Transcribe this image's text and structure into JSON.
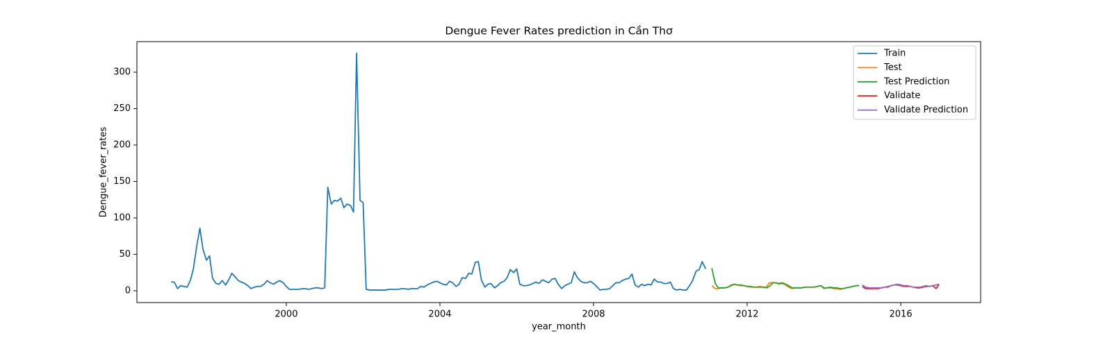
{
  "chart_data": {
    "type": "line",
    "title": "Dengue Fever Rates prediction in Cần Thơ",
    "xlabel": "year_month",
    "ylabel": "Dengue_fever_rates",
    "xlim": [
      1996.11,
      2018.08
    ],
    "ylim": [
      -16.2,
      341.9
    ],
    "xticks": [
      2000,
      2004,
      2008,
      2012,
      2016
    ],
    "yticks": [
      0,
      50,
      100,
      150,
      200,
      250,
      300
    ],
    "legend": "upper right",
    "grid": false,
    "series": [
      {
        "name": "Train",
        "color": "#1f77b4",
        "x": [
          1997,
          1997.08,
          1997.17,
          1997.25,
          1997.33,
          1997.42,
          1997.5,
          1997.58,
          1997.67,
          1997.75,
          1997.83,
          1997.92,
          1998,
          1998.08,
          1998.17,
          1998.25,
          1998.33,
          1998.42,
          1998.5,
          1998.58,
          1998.67,
          1998.75,
          1998.83,
          1998.92,
          1999,
          1999.08,
          1999.17,
          1999.25,
          1999.33,
          1999.42,
          1999.5,
          1999.58,
          1999.67,
          1999.75,
          1999.83,
          1999.92,
          2000,
          2000.08,
          2000.17,
          2000.25,
          2000.33,
          2000.42,
          2000.5,
          2000.58,
          2000.67,
          2000.75,
          2000.83,
          2000.92,
          2001,
          2001.08,
          2001.17,
          2001.25,
          2001.33,
          2001.42,
          2001.5,
          2001.58,
          2001.67,
          2001.75,
          2001.83,
          2001.92,
          2002,
          2002.08,
          2002.17,
          2002.25,
          2002.33,
          2002.42,
          2002.5,
          2002.58,
          2002.67,
          2002.75,
          2002.83,
          2002.92,
          2003,
          2003.08,
          2003.17,
          2003.25,
          2003.33,
          2003.42,
          2003.5,
          2003.58,
          2003.67,
          2003.75,
          2003.83,
          2003.92,
          2004,
          2004.08,
          2004.17,
          2004.25,
          2004.33,
          2004.42,
          2004.5,
          2004.58,
          2004.67,
          2004.75,
          2004.83,
          2004.92,
          2005,
          2005.08,
          2005.17,
          2005.25,
          2005.33,
          2005.42,
          2005.5,
          2005.58,
          2005.67,
          2005.75,
          2005.83,
          2005.92,
          2006,
          2006.08,
          2006.17,
          2006.25,
          2006.33,
          2006.42,
          2006.5,
          2006.58,
          2006.67,
          2006.75,
          2006.83,
          2006.92,
          2007,
          2007.08,
          2007.17,
          2007.25,
          2007.33,
          2007.42,
          2007.5,
          2007.58,
          2007.67,
          2007.75,
          2007.83,
          2007.92,
          2008,
          2008.08,
          2008.17,
          2008.25,
          2008.33,
          2008.42,
          2008.5,
          2008.58,
          2008.67,
          2008.75,
          2008.83,
          2008.92,
          2009,
          2009.08,
          2009.17,
          2009.25,
          2009.33,
          2009.42,
          2009.5,
          2009.58,
          2009.67,
          2009.75,
          2009.83,
          2009.92,
          2010,
          2010.08,
          2010.17,
          2010.25,
          2010.33,
          2010.42,
          2010.5,
          2010.58,
          2010.67,
          2010.75,
          2010.83,
          2010.92
        ],
        "values": [
          12,
          12,
          3,
          7,
          6,
          5,
          14,
          30,
          62,
          86,
          57,
          42,
          48,
          17,
          10,
          9,
          14,
          8,
          15,
          24,
          19,
          14,
          12,
          10,
          7,
          3,
          5,
          6,
          6,
          9,
          14,
          11,
          9,
          12,
          14,
          11,
          6,
          2,
          2,
          2,
          2,
          3,
          3,
          2,
          3,
          4,
          4,
          3,
          4,
          142,
          119,
          124,
          123,
          127,
          114,
          119,
          117,
          108,
          326,
          124,
          121,
          2,
          1,
          1,
          1,
          1,
          1,
          1,
          2,
          2,
          2,
          2,
          3,
          3,
          2,
          3,
          3,
          3,
          6,
          5,
          8,
          10,
          12,
          13,
          11,
          9,
          8,
          13,
          11,
          6,
          9,
          18,
          17,
          24,
          23,
          39,
          40,
          15,
          5,
          9,
          10,
          4,
          7,
          11,
          13,
          18,
          29,
          25,
          30,
          9,
          7,
          7,
          8,
          10,
          12,
          10,
          15,
          13,
          11,
          16,
          17,
          9,
          3,
          7,
          9,
          11,
          26,
          18,
          13,
          11,
          11,
          13,
          10,
          6,
          1,
          2,
          2,
          3,
          7,
          11,
          11,
          14,
          16,
          17,
          23,
          8,
          5,
          9,
          7,
          9,
          8,
          16,
          12,
          12,
          10,
          10,
          12,
          3,
          1,
          2,
          1,
          1,
          7,
          14,
          27,
          29,
          40,
          30
        ]
      },
      {
        "name": "Test",
        "color": "#ff7f0e",
        "x": [
          2011.08,
          2011.17,
          2011.25,
          2011.33,
          2011.42,
          2011.5,
          2011.58,
          2011.67,
          2011.75,
          2011.83,
          2011.92,
          2012,
          2012.08,
          2012.17,
          2012.25,
          2012.33,
          2012.42,
          2012.5,
          2012.58,
          2012.67,
          2012.75,
          2012.83,
          2012.92,
          2013,
          2013.08,
          2013.17,
          2013.25,
          2013.33,
          2013.42,
          2013.5,
          2013.58,
          2013.67,
          2013.75,
          2013.83,
          2013.92,
          2014,
          2014.08,
          2014.17,
          2014.25,
          2014.33,
          2014.42,
          2014.5,
          2014.58,
          2014.67,
          2014.75,
          2014.83,
          2014.92
        ],
        "values": [
          7,
          3,
          3,
          4,
          4,
          5,
          8,
          9,
          8,
          7,
          7,
          6,
          5,
          5,
          5,
          6,
          5,
          5,
          11,
          11,
          11,
          9,
          10,
          8,
          5,
          3,
          4,
          4,
          4,
          5,
          5,
          5,
          5,
          6,
          7,
          3,
          4,
          4,
          3,
          3,
          2,
          3,
          4,
          5,
          6,
          7,
          7
        ]
      },
      {
        "name": "Test Prediction",
        "color": "#2ca02c",
        "x": [
          2011.08,
          2011.17,
          2011.25,
          2011.33,
          2011.42,
          2011.5,
          2011.58,
          2011.67,
          2011.75,
          2011.83,
          2011.92,
          2012,
          2012.08,
          2012.17,
          2012.25,
          2012.33,
          2012.42,
          2012.5,
          2012.58,
          2012.67,
          2012.75,
          2012.83,
          2012.92,
          2013,
          2013.08,
          2013.17,
          2013.25,
          2013.33,
          2013.42,
          2013.5,
          2013.58,
          2013.67,
          2013.75,
          2013.83,
          2013.92,
          2014,
          2014.08,
          2014.17,
          2014.25,
          2014.33,
          2014.42,
          2014.5,
          2014.58,
          2014.67,
          2014.75,
          2014.83,
          2014.92
        ],
        "values": [
          31,
          10,
          4,
          4,
          4,
          5,
          7,
          9,
          8,
          8,
          7,
          6,
          6,
          5,
          5,
          5,
          5,
          4,
          6,
          11,
          11,
          10,
          11,
          9,
          7,
          4,
          4,
          4,
          4,
          5,
          5,
          5,
          5,
          6,
          7,
          4,
          4,
          5,
          4,
          4,
          3,
          3,
          4,
          5,
          6,
          7,
          7
        ]
      },
      {
        "name": "Validate",
        "color": "#d62728",
        "x": [
          2015,
          2015.08,
          2015.17,
          2015.25,
          2015.33,
          2015.42,
          2015.5,
          2015.58,
          2015.67,
          2015.75,
          2015.83,
          2015.92,
          2016,
          2016.08,
          2016.17,
          2016.25,
          2016.33,
          2016.42,
          2016.5,
          2016.58,
          2016.67,
          2016.75,
          2016.83,
          2016.92,
          2017
        ],
        "values": [
          6,
          3,
          3,
          3,
          3,
          3,
          4,
          5,
          5,
          7,
          8,
          8,
          7,
          6,
          6,
          6,
          5,
          4,
          4,
          5,
          6,
          6,
          7,
          3,
          9
        ]
      },
      {
        "name": "Validate Prediction",
        "color": "#9467bd",
        "x": [
          2015,
          2015.08,
          2015.17,
          2015.25,
          2015.33,
          2015.42,
          2015.5,
          2015.58,
          2015.67,
          2015.75,
          2015.83,
          2015.92,
          2016,
          2016.08,
          2016.17,
          2016.25,
          2016.33,
          2016.42,
          2016.5,
          2016.58,
          2016.67,
          2016.75,
          2016.83,
          2016.92,
          2017
        ],
        "values": [
          8,
          5,
          4,
          4,
          4,
          4,
          4,
          5,
          6,
          7,
          8,
          9,
          8,
          7,
          7,
          6,
          5,
          5,
          5,
          6,
          7,
          6,
          7,
          8,
          9
        ]
      }
    ]
  }
}
